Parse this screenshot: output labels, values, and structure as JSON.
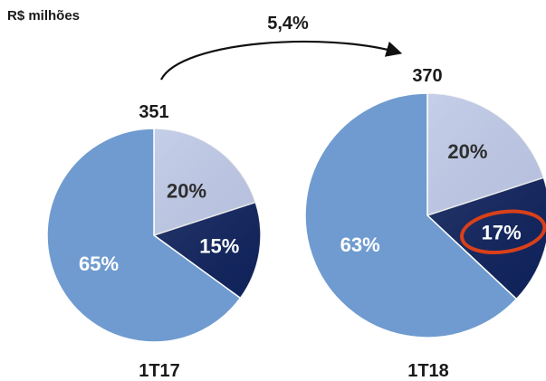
{
  "unit_label": "R$ milhões",
  "growth_label": "5,4%",
  "colors": {
    "light_blue": "#c7d3f4",
    "navy": "#0d2260",
    "steel_blue": "#6f9bd0",
    "highlight_ring": "#d9401a",
    "text_dark": "#1a1a1a",
    "text_white": "#ffffff"
  },
  "chart_data": [
    {
      "type": "pie",
      "period": "1T17",
      "total": 351,
      "total_label": "351",
      "slices": [
        {
          "value": 20,
          "label": "20%",
          "color": "#c7d3f4"
        },
        {
          "value": 15,
          "label": "15%",
          "color": "#0d2260"
        },
        {
          "value": 65,
          "label": "65%",
          "color": "#6f9bd0"
        }
      ]
    },
    {
      "type": "pie",
      "period": "1T18",
      "total": 370,
      "total_label": "370",
      "slices": [
        {
          "value": 20,
          "label": "20%",
          "color": "#c7d3f4"
        },
        {
          "value": 17,
          "label": "17%",
          "color": "#0d2260",
          "highlighted": true
        },
        {
          "value": 63,
          "label": "63%",
          "color": "#6f9bd0"
        }
      ]
    }
  ]
}
